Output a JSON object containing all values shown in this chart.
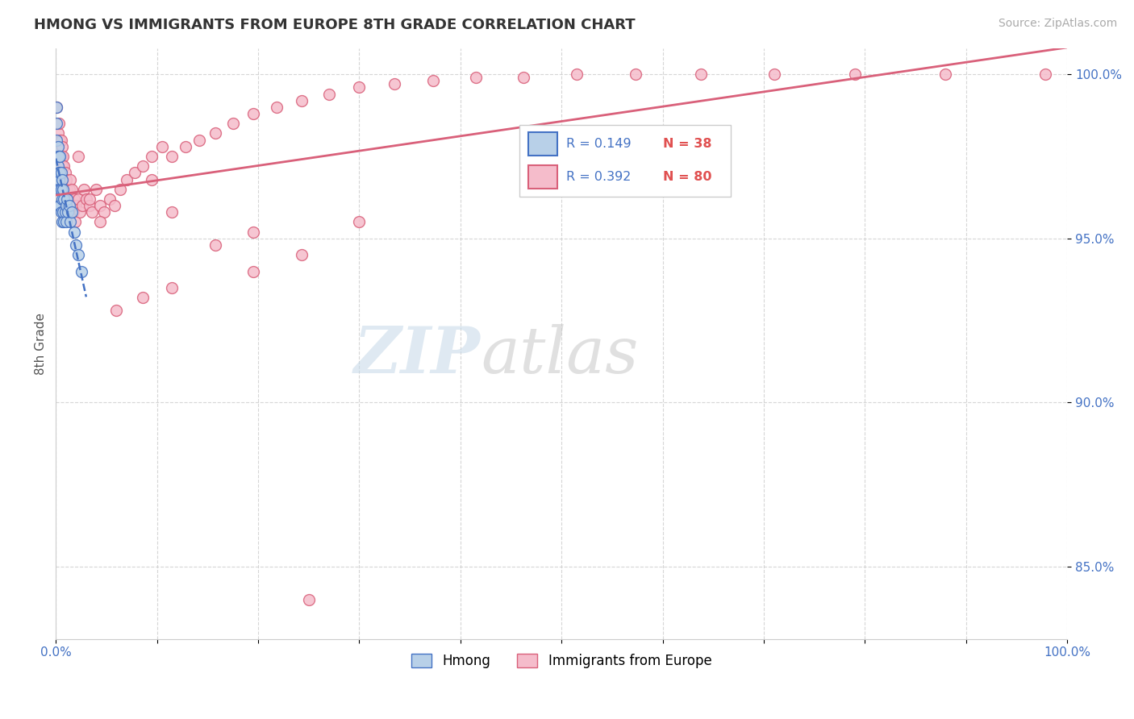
{
  "title": "HMONG VS IMMIGRANTS FROM EUROPE 8TH GRADE CORRELATION CHART",
  "source": "Source: ZipAtlas.com",
  "ylabel": "8th Grade",
  "xlim": [
    0.0,
    1.0
  ],
  "ylim": [
    0.828,
    1.008
  ],
  "yticks": [
    0.85,
    0.9,
    0.95,
    1.0
  ],
  "ytick_labels": [
    "85.0%",
    "90.0%",
    "95.0%",
    "100.0%"
  ],
  "xtick_positions": [
    0.0,
    0.1,
    0.2,
    0.3,
    0.4,
    0.5,
    0.6,
    0.7,
    0.8,
    0.9,
    1.0
  ],
  "xtick_labels": [
    "0.0%",
    "",
    "",
    "",
    "",
    "",
    "",
    "",
    "",
    "",
    "100.0%"
  ],
  "hmong_color": "#b8d0e8",
  "hmong_edge_color": "#4472c4",
  "europe_color": "#f5bccb",
  "europe_edge_color": "#d9607a",
  "trend_blue_color": "#4472c4",
  "trend_pink_color": "#d9607a",
  "legend_r_hmong": "R = 0.149",
  "legend_n_hmong": "N = 38",
  "legend_r_europe": "R = 0.392",
  "legend_n_europe": "N = 80",
  "watermark_zip": "ZIP",
  "watermark_atlas": "atlas",
  "marker_size": 100,
  "hmong_x": [
    0.001,
    0.001,
    0.001,
    0.002,
    0.002,
    0.002,
    0.002,
    0.003,
    0.003,
    0.003,
    0.003,
    0.003,
    0.004,
    0.004,
    0.004,
    0.004,
    0.005,
    0.005,
    0.005,
    0.006,
    0.006,
    0.006,
    0.007,
    0.007,
    0.008,
    0.008,
    0.009,
    0.01,
    0.01,
    0.011,
    0.012,
    0.013,
    0.014,
    0.016,
    0.018,
    0.02,
    0.022,
    0.025
  ],
  "hmong_y": [
    0.99,
    0.985,
    0.98,
    0.978,
    0.975,
    0.972,
    0.968,
    0.975,
    0.97,
    0.968,
    0.965,
    0.96,
    0.975,
    0.97,
    0.965,
    0.96,
    0.97,
    0.965,
    0.958,
    0.968,
    0.962,
    0.955,
    0.965,
    0.958,
    0.962,
    0.955,
    0.958,
    0.96,
    0.955,
    0.962,
    0.958,
    0.96,
    0.955,
    0.958,
    0.952,
    0.948,
    0.945,
    0.94
  ],
  "europe_x": [
    0.001,
    0.002,
    0.003,
    0.004,
    0.004,
    0.005,
    0.005,
    0.006,
    0.006,
    0.007,
    0.007,
    0.008,
    0.008,
    0.009,
    0.009,
    0.01,
    0.01,
    0.011,
    0.012,
    0.013,
    0.014,
    0.015,
    0.016,
    0.017,
    0.018,
    0.019,
    0.02,
    0.022,
    0.024,
    0.026,
    0.028,
    0.03,
    0.033,
    0.036,
    0.04,
    0.044,
    0.048,
    0.053,
    0.058,
    0.064,
    0.07,
    0.078,
    0.086,
    0.095,
    0.105,
    0.115,
    0.128,
    0.142,
    0.158,
    0.175,
    0.195,
    0.218,
    0.243,
    0.27,
    0.3,
    0.335,
    0.373,
    0.415,
    0.462,
    0.515,
    0.573,
    0.638,
    0.71,
    0.79,
    0.879,
    0.978,
    0.022,
    0.033,
    0.044,
    0.095,
    0.115,
    0.158,
    0.195,
    0.243,
    0.3,
    0.195,
    0.115,
    0.086,
    0.06,
    0.25
  ],
  "europe_y": [
    0.99,
    0.982,
    0.985,
    0.98,
    0.975,
    0.98,
    0.975,
    0.978,
    0.972,
    0.975,
    0.968,
    0.972,
    0.965,
    0.97,
    0.963,
    0.968,
    0.96,
    0.965,
    0.962,
    0.965,
    0.968,
    0.96,
    0.965,
    0.958,
    0.962,
    0.955,
    0.96,
    0.962,
    0.958,
    0.96,
    0.965,
    0.962,
    0.96,
    0.958,
    0.965,
    0.96,
    0.958,
    0.962,
    0.96,
    0.965,
    0.968,
    0.97,
    0.972,
    0.975,
    0.978,
    0.975,
    0.978,
    0.98,
    0.982,
    0.985,
    0.988,
    0.99,
    0.992,
    0.994,
    0.996,
    0.997,
    0.998,
    0.999,
    0.999,
    1.0,
    1.0,
    1.0,
    1.0,
    1.0,
    1.0,
    1.0,
    0.975,
    0.962,
    0.955,
    0.968,
    0.958,
    0.948,
    0.952,
    0.945,
    0.955,
    0.94,
    0.935,
    0.932,
    0.928,
    0.84
  ],
  "hmong_trend_x0": 0.0,
  "hmong_trend_x1": 0.03,
  "europe_trend_x0": 0.0,
  "europe_trend_x1": 1.0
}
